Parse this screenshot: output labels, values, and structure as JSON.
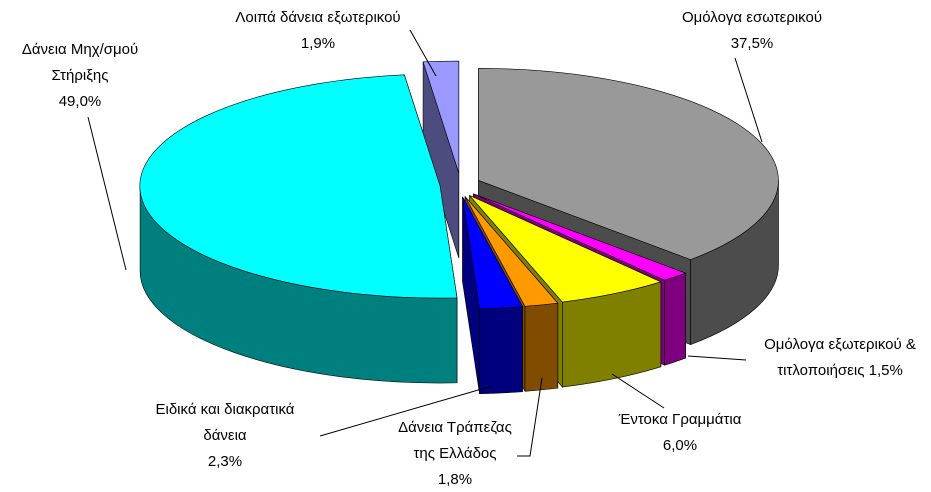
{
  "chart_data": {
    "type": "pie",
    "categories": [
      "Ομόλογα εσωτερικού",
      "Ομόλογα εξωτερικού & τιτλοποιήσεις",
      "Έντοκα Γραμμάτια",
      "Δάνεια Τράπεζας της Ελλάδος",
      "Ειδικά και διακρατικά δάνεια",
      "Δάνεια Μηχ/σμού Στήριξης",
      "Λοιπά δάνεια εξωτερικού"
    ],
    "values": [
      37.5,
      1.5,
      6.0,
      1.8,
      2.3,
      49.0,
      1.9
    ],
    "value_labels": [
      "37,5%",
      "1,5%",
      "6,0%",
      "1,8%",
      "2,3%",
      "49,0%",
      "1,9%"
    ],
    "colors": [
      "#999999",
      "#ff00ff",
      "#ffff00",
      "#ff9900",
      "#0000ff",
      "#00ffff",
      "#9999ff"
    ]
  }
}
